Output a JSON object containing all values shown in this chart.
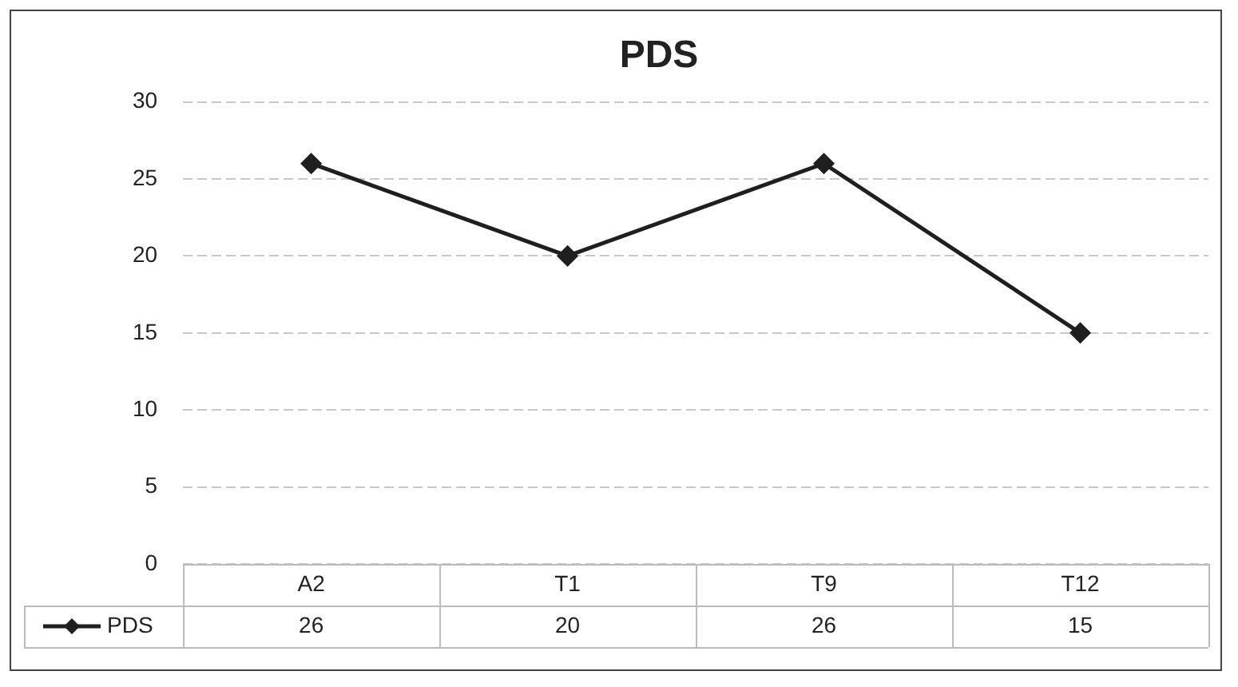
{
  "chart_data": {
    "type": "line",
    "title": "PDS",
    "categories": [
      "A2",
      "T1",
      "T9",
      "T12"
    ],
    "series": [
      {
        "name": "PDS",
        "color": "#1f1f1f",
        "values": [
          26,
          20,
          26,
          15
        ]
      }
    ],
    "ylim": [
      0,
      30
    ],
    "yticks": [
      0,
      5,
      10,
      15,
      20,
      25,
      30
    ],
    "grid": "y",
    "legend": "bottom left",
    "marker": "diamond",
    "line_style": "solid",
    "data_labels": true
  }
}
